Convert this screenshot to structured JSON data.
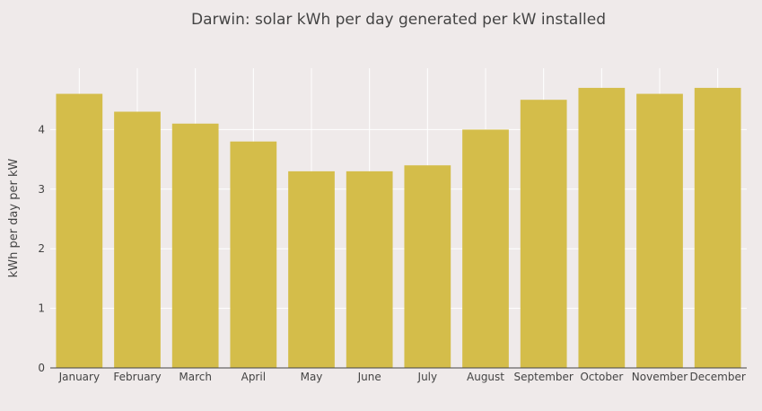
{
  "chart_data": {
    "type": "bar",
    "title": "Darwin: solar kWh per day generated per kW installed",
    "xlabel": "",
    "ylabel": "kWh per day per kW",
    "categories": [
      "January",
      "February",
      "March",
      "April",
      "May",
      "June",
      "July",
      "August",
      "September",
      "October",
      "November",
      "December"
    ],
    "values": [
      4.6,
      4.3,
      4.1,
      3.8,
      3.3,
      3.3,
      3.4,
      4.0,
      4.5,
      4.7,
      4.6,
      4.7
    ],
    "ylim": [
      0,
      5.03
    ],
    "yticks": [
      0,
      1,
      2,
      3,
      4
    ],
    "grid": true,
    "bar_color": "#d4bd4a",
    "background_color": "#efeaea",
    "grid_color": "#ffffff"
  }
}
